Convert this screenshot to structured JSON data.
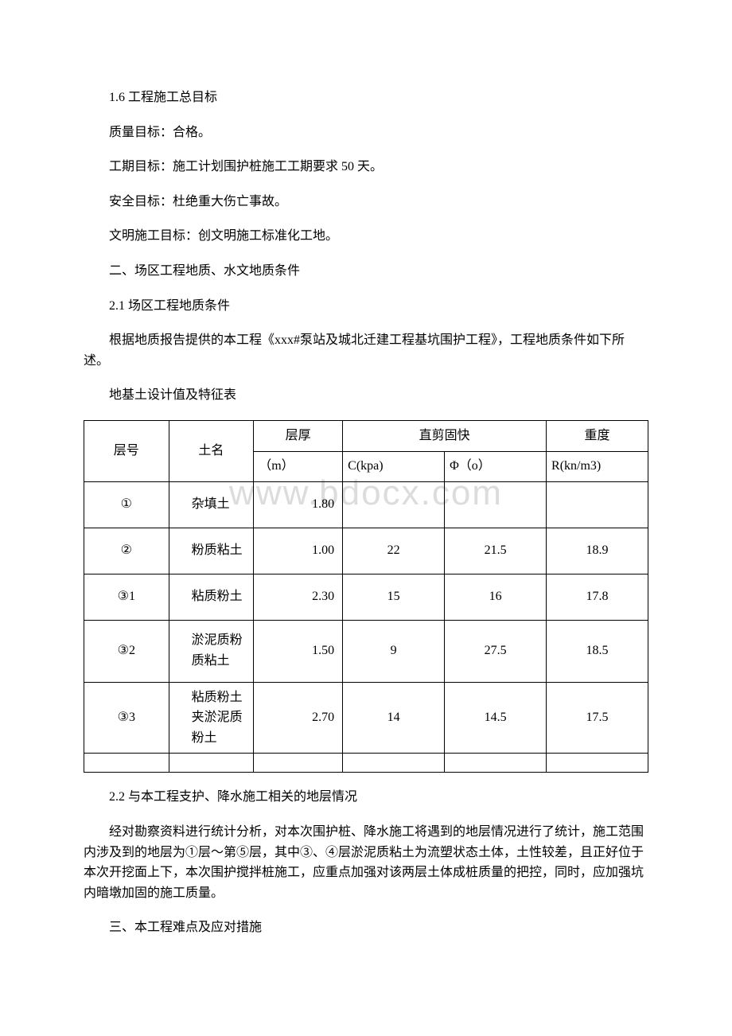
{
  "paragraphs": {
    "p1": "1.6 工程施工总目标",
    "p2": "质量目标：合格。",
    "p3": "工期目标：施工计划围护桩施工工期要求 50 天。",
    "p4": "安全目标：杜绝重大伤亡事故。",
    "p5": "文明施工目标：创文明施工标准化工地。",
    "p6": "二、场区工程地质、水文地质条件",
    "p7": "2.1 场区工程地质条件",
    "p8": "根据地质报告提供的本工程《xxx#泵站及城北迁建工程基坑围护工程》，工程地质条件如下所述。",
    "p9": "地基土设计值及特征表",
    "p10": "2.2 与本工程支护、降水施工相关的地层情况",
    "p11": "经对勘察资料进行统计分析，对本次围护桩、降水施工将遇到的地层情况进行了统计，施工范围内涉及到的地层为①层～第⑤层，其中③、④层淤泥质粘土为流塑状态土体，土性较差，且正好位于本次开挖面上下，本次围护搅拌桩施工，应重点加强对该两层土体成桩质量的把控，同时，应加强坑内暗墩加固的施工质量。",
    "p12": "三、本工程难点及应对措施"
  },
  "watermark": "www.bdocx.com",
  "table": {
    "headers": {
      "layer": "层号",
      "name": "土名",
      "thick": "层厚",
      "shear": "直剪固快",
      "weight": "重度",
      "thick_unit": "（m）",
      "c_unit": "C(kpa)",
      "phi_unit": "Φ（o）",
      "weight_unit": "R(kn/m3)"
    },
    "rows": [
      {
        "layer": "①",
        "name": "杂填土",
        "thick": "1.80",
        "c": "",
        "phi": "",
        "weight": ""
      },
      {
        "layer": "②",
        "name": "粉质粘土",
        "thick": "1.00",
        "c": "22",
        "phi": "21.5",
        "weight": "18.9"
      },
      {
        "layer": "③1",
        "name": "粘质粉土",
        "thick": "2.30",
        "c": "15",
        "phi": "16",
        "weight": "17.8"
      },
      {
        "layer": "③2",
        "name": "淤泥质粉质粘土",
        "thick": "1.50",
        "c": "9",
        "phi": "27.5",
        "weight": "18.5"
      },
      {
        "layer": "③3",
        "name": "粘质粉土夹淤泥质粉土",
        "thick": "2.70",
        "c": "14",
        "phi": "14.5",
        "weight": "17.5"
      }
    ]
  }
}
